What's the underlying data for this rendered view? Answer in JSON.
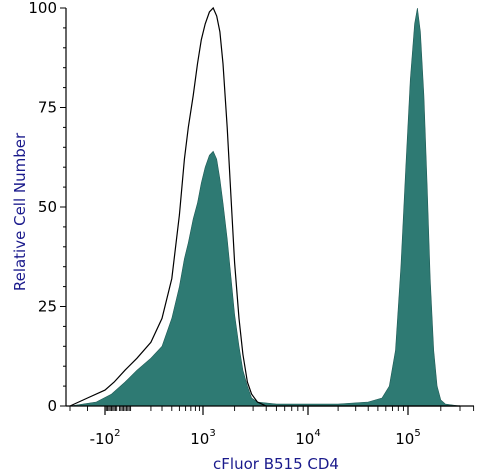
{
  "chart_data": {
    "type": "area",
    "title": "",
    "xlabel": "cFluor B515 CD4",
    "ylabel": "Relative Cell Number",
    "x_scale": "biexponential",
    "ylim": [
      0,
      100
    ],
    "grid": false,
    "legend": "none",
    "y_ticks": [
      0,
      25,
      50,
      75,
      100
    ],
    "y_tick_labels": [
      "0",
      "25",
      "50",
      "75",
      "100"
    ],
    "x_tick_labels": [
      {
        "base": "-10",
        "exp": "2",
        "value": -100
      },
      {
        "base": "10",
        "exp": "3",
        "value": 1000
      },
      {
        "base": "10",
        "exp": "4",
        "value": 10000
      },
      {
        "base": "10",
        "exp": "5",
        "value": 100000
      }
    ],
    "series": [
      {
        "style": "outline",
        "color": "#000000",
        "points": [
          [
            -300,
            0
          ],
          [
            -200,
            2
          ],
          [
            -100,
            4
          ],
          [
            -30,
            6
          ],
          [
            50,
            9
          ],
          [
            120,
            12
          ],
          [
            200,
            16
          ],
          [
            300,
            22
          ],
          [
            400,
            32
          ],
          [
            500,
            48
          ],
          [
            580,
            62
          ],
          [
            650,
            70
          ],
          [
            750,
            78
          ],
          [
            850,
            86
          ],
          [
            950,
            92
          ],
          [
            1050,
            96
          ],
          [
            1150,
            99
          ],
          [
            1250,
            100
          ],
          [
            1350,
            98
          ],
          [
            1450,
            94
          ],
          [
            1550,
            86
          ],
          [
            1700,
            70
          ],
          [
            1850,
            52
          ],
          [
            2000,
            36
          ],
          [
            2200,
            22
          ],
          [
            2400,
            13
          ],
          [
            2650,
            6
          ],
          [
            2900,
            3
          ],
          [
            3300,
            1
          ],
          [
            4000,
            0
          ],
          [
            300000,
            0
          ]
        ]
      },
      {
        "style": "filled",
        "color": "#2e7a73",
        "points": [
          [
            -300,
            0
          ],
          [
            -150,
            1
          ],
          [
            -50,
            3
          ],
          [
            50,
            6
          ],
          [
            120,
            9
          ],
          [
            200,
            12
          ],
          [
            300,
            15
          ],
          [
            400,
            22
          ],
          [
            500,
            30
          ],
          [
            580,
            37
          ],
          [
            650,
            41
          ],
          [
            750,
            47
          ],
          [
            850,
            51
          ],
          [
            950,
            56
          ],
          [
            1050,
            60
          ],
          [
            1150,
            63
          ],
          [
            1250,
            64
          ],
          [
            1350,
            62
          ],
          [
            1450,
            57
          ],
          [
            1550,
            51
          ],
          [
            1700,
            42
          ],
          [
            1850,
            32
          ],
          [
            2000,
            23
          ],
          [
            2200,
            15
          ],
          [
            2400,
            9
          ],
          [
            2650,
            5
          ],
          [
            2900,
            2
          ],
          [
            3300,
            1
          ],
          [
            5000,
            0.5
          ],
          [
            20000,
            0.5
          ],
          [
            40000,
            1
          ],
          [
            55000,
            2
          ],
          [
            65000,
            5
          ],
          [
            75000,
            14
          ],
          [
            85000,
            35
          ],
          [
            95000,
            60
          ],
          [
            105000,
            82
          ],
          [
            115000,
            96
          ],
          [
            122000,
            100
          ],
          [
            130000,
            94
          ],
          [
            140000,
            78
          ],
          [
            150000,
            55
          ],
          [
            160000,
            32
          ],
          [
            172000,
            14
          ],
          [
            185000,
            5
          ],
          [
            200000,
            1.5
          ],
          [
            220000,
            0.5
          ],
          [
            300000,
            0
          ]
        ]
      }
    ]
  }
}
